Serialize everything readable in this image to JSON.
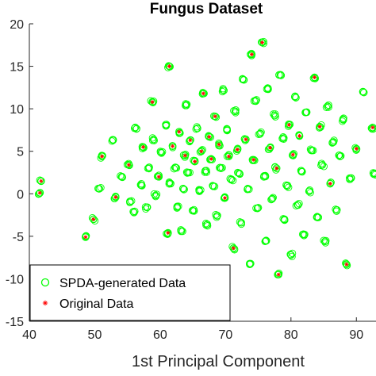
{
  "chart_data": {
    "type": "scatter",
    "title": "Fungus Dataset",
    "xlabel": "1st Principal Component",
    "ylabel": "",
    "xlim": [
      40,
      93
    ],
    "ylim": [
      -15,
      20
    ],
    "xticks": [
      "40",
      "50",
      "60",
      "70",
      "80",
      "90"
    ],
    "yticks": [
      "-15",
      "-10",
      "-5",
      "0",
      "5",
      "10",
      "15",
      "20"
    ],
    "grid": false,
    "legend_position": "bottom-left",
    "series": [
      {
        "name": "SPDA-generated Data",
        "marker": "circle",
        "color": "#00ff00",
        "points": [
          [
            41.8,
            1.5
          ],
          [
            41.6,
            0.1
          ],
          [
            48.6,
            -5.1
          ],
          [
            49.8,
            -3.0
          ],
          [
            50.7,
            0.6
          ],
          [
            51.1,
            4.4
          ],
          [
            52.8,
            6.3
          ],
          [
            53.2,
            -0.4
          ],
          [
            54.1,
            2.0
          ],
          [
            55.2,
            3.4
          ],
          [
            55.4,
            -0.9
          ],
          [
            56.0,
            -2.2
          ],
          [
            56.2,
            7.8
          ],
          [
            57.1,
            1.0
          ],
          [
            57.4,
            5.5
          ],
          [
            58.0,
            -1.6
          ],
          [
            58.3,
            3.1
          ],
          [
            58.8,
            10.8
          ],
          [
            59.0,
            6.4
          ],
          [
            59.3,
            -0.2
          ],
          [
            59.8,
            2.0
          ],
          [
            60.2,
            4.8
          ],
          [
            60.9,
            8.0
          ],
          [
            61.2,
            -4.6
          ],
          [
            61.4,
            15.0
          ],
          [
            61.6,
            1.2
          ],
          [
            61.9,
            5.6
          ],
          [
            62.3,
            3.1
          ],
          [
            62.6,
            -1.5
          ],
          [
            62.9,
            7.3
          ],
          [
            63.2,
            -4.4
          ],
          [
            63.5,
            0.6
          ],
          [
            63.8,
            4.5
          ],
          [
            64.0,
            10.4
          ],
          [
            64.3,
            2.5
          ],
          [
            64.6,
            6.3
          ],
          [
            65.0,
            -2.0
          ],
          [
            65.3,
            3.8
          ],
          [
            65.7,
            7.7
          ],
          [
            66.0,
            0.3
          ],
          [
            66.3,
            5.0
          ],
          [
            66.6,
            11.8
          ],
          [
            66.9,
            2.7
          ],
          [
            67.2,
            -3.6
          ],
          [
            67.5,
            6.7
          ],
          [
            67.8,
            4.1
          ],
          [
            68.1,
            0.9
          ],
          [
            68.4,
            9.1
          ],
          [
            68.7,
            -2.6
          ],
          [
            69.0,
            5.8
          ],
          [
            69.3,
            3.0
          ],
          [
            69.6,
            12.2
          ],
          [
            69.9,
            -0.5
          ],
          [
            70.2,
            7.5
          ],
          [
            70.5,
            4.4
          ],
          [
            70.9,
            1.7
          ],
          [
            71.2,
            -6.4
          ],
          [
            71.5,
            9.7
          ],
          [
            71.8,
            5.2
          ],
          [
            72.1,
            2.4
          ],
          [
            72.4,
            -3.4
          ],
          [
            72.8,
            13.4
          ],
          [
            73.1,
            6.4
          ],
          [
            73.4,
            0.6
          ],
          [
            73.7,
            -8.3
          ],
          [
            74.0,
            16.4
          ],
          [
            74.3,
            4.0
          ],
          [
            74.6,
            10.9
          ],
          [
            74.9,
            -1.7
          ],
          [
            75.3,
            7.1
          ],
          [
            75.6,
            17.8
          ],
          [
            75.9,
            2.1
          ],
          [
            76.2,
            -5.5
          ],
          [
            76.5,
            12.3
          ],
          [
            76.8,
            5.4
          ],
          [
            77.1,
            -0.6
          ],
          [
            77.5,
            9.2
          ],
          [
            77.8,
            3.0
          ],
          [
            78.1,
            -9.5
          ],
          [
            78.4,
            14.0
          ],
          [
            78.7,
            6.5
          ],
          [
            79.0,
            -3.0
          ],
          [
            79.4,
            0.9
          ],
          [
            79.7,
            8.1
          ],
          [
            80.0,
            -7.2
          ],
          [
            80.3,
            4.6
          ],
          [
            80.6,
            11.4
          ],
          [
            81.0,
            -1.3
          ],
          [
            81.3,
            6.8
          ],
          [
            81.7,
            2.6
          ],
          [
            82.0,
            -4.9
          ],
          [
            82.4,
            9.6
          ],
          [
            82.8,
            0.3
          ],
          [
            83.2,
            5.1
          ],
          [
            83.6,
            13.7
          ],
          [
            84.0,
            -2.7
          ],
          [
            84.4,
            7.9
          ],
          [
            84.8,
            3.4
          ],
          [
            85.2,
            -5.6
          ],
          [
            85.6,
            10.3
          ],
          [
            86.0,
            1.2
          ],
          [
            86.5,
            6.1
          ],
          [
            87.0,
            -1.9
          ],
          [
            87.5,
            4.4
          ],
          [
            88.0,
            8.7
          ],
          [
            88.5,
            -8.3
          ],
          [
            89.0,
            1.7
          ],
          [
            90.0,
            5.3
          ],
          [
            91.0,
            12.0
          ],
          [
            92.5,
            7.8
          ],
          [
            92.8,
            2.4
          ]
        ]
      },
      {
        "name": "Original Data",
        "marker": "asterisk",
        "color": "#ff0000",
        "points": [
          [
            41.8,
            1.5
          ],
          [
            41.6,
            0.1
          ],
          [
            48.6,
            -5.1
          ],
          [
            49.8,
            -3.0
          ],
          [
            51.1,
            4.4
          ],
          [
            53.2,
            -0.4
          ],
          [
            55.2,
            3.4
          ],
          [
            57.4,
            5.5
          ],
          [
            58.8,
            10.8
          ],
          [
            59.8,
            2.0
          ],
          [
            61.2,
            -4.6
          ],
          [
            61.4,
            15.0
          ],
          [
            61.9,
            5.6
          ],
          [
            62.9,
            7.3
          ],
          [
            63.8,
            4.5
          ],
          [
            64.6,
            6.3
          ],
          [
            65.3,
            3.8
          ],
          [
            66.3,
            5.0
          ],
          [
            66.6,
            11.8
          ],
          [
            67.5,
            6.7
          ],
          [
            67.8,
            4.1
          ],
          [
            68.4,
            9.1
          ],
          [
            69.0,
            5.8
          ],
          [
            69.9,
            -0.5
          ],
          [
            70.5,
            4.4
          ],
          [
            71.2,
            -6.4
          ],
          [
            71.8,
            5.2
          ],
          [
            73.1,
            6.4
          ],
          [
            74.0,
            16.4
          ],
          [
            74.3,
            4.0
          ],
          [
            75.6,
            17.8
          ],
          [
            76.8,
            5.4
          ],
          [
            77.8,
            3.0
          ],
          [
            78.1,
            -9.5
          ],
          [
            79.7,
            8.1
          ],
          [
            80.3,
            4.6
          ],
          [
            81.3,
            6.8
          ],
          [
            83.6,
            13.7
          ],
          [
            84.4,
            7.9
          ],
          [
            86.0,
            1.2
          ],
          [
            88.5,
            -8.3
          ],
          [
            90.0,
            5.3
          ],
          [
            92.5,
            7.8
          ]
        ]
      }
    ]
  }
}
